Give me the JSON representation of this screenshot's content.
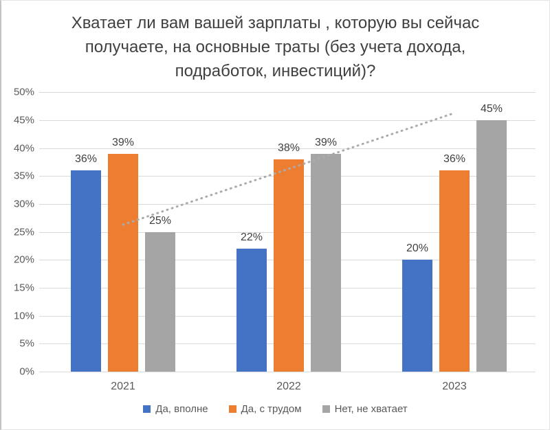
{
  "chart_data": {
    "type": "bar",
    "title": "Хватает ли вам вашей зарплаты , которую вы сейчас получаете, на основные траты (без учета дохода, подработок, инвестиций)?",
    "title_lines": [
      "Хватает ли вам вашей зарплаты , которую вы сейчас",
      "получаете, на основные траты (без учета дохода,",
      "подработок, инвестиций)?"
    ],
    "categories": [
      "2021",
      "2022",
      "2023"
    ],
    "series": [
      {
        "name": "Да, вполне",
        "color": "#4472C4",
        "values": [
          36,
          22,
          20
        ]
      },
      {
        "name": "Да, с трудом",
        "color": "#ED7D31",
        "values": [
          39,
          38,
          36
        ]
      },
      {
        "name": "Нет, не хватает",
        "color": "#A5A5A5",
        "values": [
          25,
          39,
          45
        ]
      }
    ],
    "data_label_format": "{v}%",
    "xlabel": "",
    "ylabel": "",
    "ylim": [
      0,
      50
    ],
    "ytick_step": 5,
    "yticks": [
      "0%",
      "5%",
      "10%",
      "15%",
      "20%",
      "25%",
      "30%",
      "35%",
      "40%",
      "45%",
      "50%"
    ],
    "grid": true,
    "legend_position": "bottom",
    "trendline": {
      "series": "Нет, не хватает",
      "style": "dotted",
      "color": "#ababab",
      "start_pct": 26.3,
      "end_pct": 46.3
    }
  },
  "colors": {
    "title_text": "#404040",
    "axis_text": "#595959",
    "data_label_text": "#404040",
    "gridline": "#d9d9d9",
    "background": "#ffffff"
  }
}
